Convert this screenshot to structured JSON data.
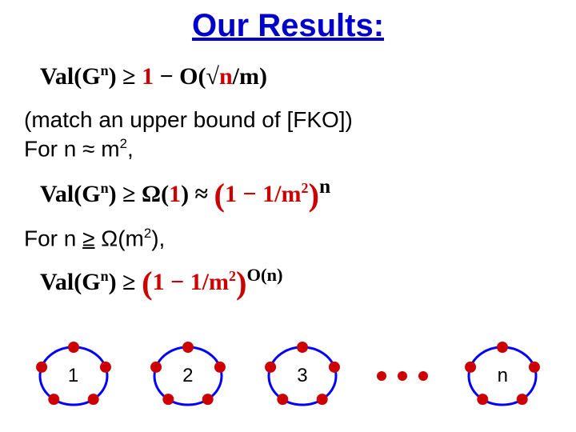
{
  "title": "Our Results:",
  "colors": {
    "title": "#0000cc",
    "text": "#000000",
    "highlight_num": "#cc0000",
    "ring_stroke": "#0000ff",
    "node_fill": "#cc0000",
    "background": "#ffffff"
  },
  "fonts": {
    "body_family": "Comic Sans MS",
    "math_family": "Georgia",
    "title_size_pt": 32,
    "body_size_pt": 22,
    "formula_size_pt": 24
  },
  "formula1": {
    "lhs_prefix": "Val(G",
    "lhs_exp": "n",
    "mid": ") ≥ ",
    "rhs_a": "1",
    "rhs_mid": " − O(√",
    "rhs_n": "n",
    "rhs_over": "/m)"
  },
  "line1": "(match an upper bound of [FKO])",
  "line2_a": "For  n ",
  "line2_approx": "≈",
  "line2_b": " m",
  "line2_exp": "2",
  "line2_c": ",",
  "formula2": {
    "lhs_prefix": "Val(G",
    "lhs_exp": "n",
    "mid": ") ≥ Ω(",
    "one": "1",
    "close": ") ≈ ",
    "paren_a": "1",
    "paren_mid": " − ",
    "paren_b": "1",
    "paren_over": "/m",
    "paren_exp": "2",
    "outer_exp": "n"
  },
  "line3_a": "For  n ",
  "line3_ge": "≥",
  "line3_b": " Ω(m",
  "line3_exp": "2",
  "line3_c": "),",
  "formula3": {
    "lhs_prefix": "Val(G",
    "lhs_exp": "n",
    "mid": ") ≥ ",
    "paren_a": "1",
    "paren_mid": " − ",
    "paren_b": "1",
    "paren_over": "/m",
    "paren_exp": "2",
    "outer_exp": "O(n)"
  },
  "graphs": {
    "type": "cycle-graphs",
    "labels": [
      "1",
      "2",
      "3",
      "n"
    ],
    "nodes_per_ring": 5,
    "ring_radius": 38,
    "node_radius": 7,
    "ring_stroke_width": 3,
    "ellipsis_dots": 3
  }
}
